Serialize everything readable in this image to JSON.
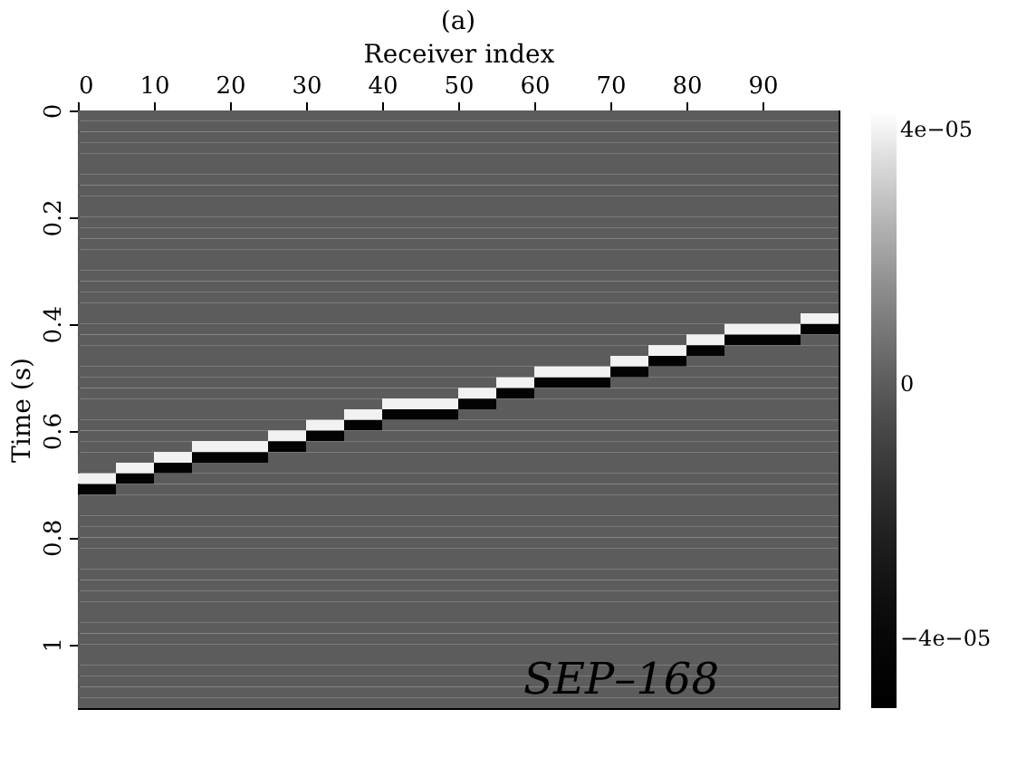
{
  "chart_data": {
    "type": "heatmap",
    "title": "(a)",
    "xlabel": "Receiver index",
    "ylabel": "Time (s)",
    "x": [
      2.5,
      7.5,
      12.5,
      17.5,
      22.5,
      27.5,
      32.5,
      37.5,
      42.5,
      47.5,
      52.5,
      57.5,
      62.5,
      67.5,
      72.5,
      77.5,
      82.5,
      87.5,
      92.5,
      97.5
    ],
    "y": [
      0.01,
      0.03,
      0.05,
      0.07,
      0.09,
      0.11,
      0.13,
      0.15,
      0.17,
      0.19,
      0.21,
      0.23,
      0.25,
      0.27,
      0.29,
      0.31,
      0.33,
      0.35,
      0.37,
      0.39,
      0.41,
      0.43,
      0.45,
      0.47,
      0.49,
      0.51,
      0.53,
      0.55,
      0.57,
      0.59,
      0.61,
      0.63,
      0.65,
      0.67,
      0.69,
      0.71,
      0.73,
      0.75,
      0.77,
      0.79,
      0.81,
      0.83,
      0.85,
      0.87,
      0.89,
      0.91,
      0.93,
      0.95,
      0.97,
      0.99,
      1.01,
      1.03,
      1.05,
      1.07,
      1.09,
      1.11
    ],
    "xlim": [
      0,
      100
    ],
    "xticks": [
      0,
      10,
      20,
      30,
      40,
      50,
      60,
      70,
      80,
      90
    ],
    "ylim": [
      1.12,
      0
    ],
    "yticks": [
      0,
      0.2,
      0.4,
      0.6,
      0.8,
      1
    ],
    "clim": [
      -5.1e-05,
      4.3e-05
    ],
    "cticks": [
      {
        "value": 4e-05,
        "label": "4e−05"
      },
      0,
      {
        "value": -4e-05,
        "label": "−4e−05"
      }
    ],
    "colors": [
      "#000000",
      "#ffffff"
    ],
    "grid": false,
    "annotations": [
      "SEP–168"
    ],
    "cells": [
      [
        0,
        0,
        0,
        0,
        0,
        0,
        0,
        0,
        0,
        0,
        0,
        0,
        0,
        0,
        0,
        0,
        0,
        0,
        0,
        0
      ],
      [
        0,
        0,
        0,
        0,
        0,
        0,
        0,
        0,
        0,
        0,
        0,
        0,
        0,
        0,
        0,
        0,
        0,
        0,
        0,
        0
      ],
      [
        0,
        0,
        0,
        0,
        0,
        0,
        0,
        0,
        0,
        0,
        0,
        0,
        0,
        0,
        0,
        0,
        0,
        0,
        0,
        0
      ],
      [
        0,
        0,
        0,
        0,
        0,
        0,
        0,
        0,
        0,
        0,
        0,
        0,
        0,
        0,
        0,
        0,
        0,
        0,
        0,
        0
      ],
      [
        0,
        0,
        0,
        0,
        0,
        0,
        0,
        0,
        0,
        0,
        0,
        0,
        0,
        0,
        0,
        0,
        0,
        0,
        0,
        0
      ],
      [
        0,
        0,
        0,
        0,
        0,
        0,
        0,
        0,
        0,
        0,
        0,
        0,
        0,
        0,
        0,
        0,
        0,
        0,
        0,
        0
      ],
      [
        0,
        0,
        0,
        0,
        0,
        0,
        0,
        0,
        0,
        0,
        0,
        0,
        0,
        0,
        0,
        0,
        0,
        0,
        0,
        0
      ],
      [
        0,
        0,
        0,
        0,
        0,
        0,
        0,
        0,
        0,
        0,
        0,
        0,
        0,
        0,
        0,
        0,
        0,
        0,
        0,
        0
      ],
      [
        0,
        0,
        0,
        0,
        0,
        0,
        0,
        0,
        0,
        0,
        0,
        0,
        0,
        0,
        0,
        0,
        0,
        0,
        0,
        0
      ],
      [
        0,
        0,
        0,
        0,
        0,
        0,
        0,
        0,
        0,
        0,
        0,
        0,
        0,
        0,
        0,
        0,
        0,
        0,
        0,
        0
      ],
      [
        0,
        0,
        0,
        0,
        0,
        0,
        0,
        0,
        0,
        0,
        0,
        0,
        0,
        0,
        0,
        0,
        0,
        0,
        0,
        0
      ],
      [
        0,
        0,
        0,
        0,
        0,
        0,
        0,
        0,
        0,
        0,
        0,
        0,
        0,
        0,
        0,
        0,
        0,
        0,
        0,
        0
      ],
      [
        0,
        0,
        0,
        0,
        0,
        0,
        0,
        0,
        0,
        0,
        0,
        0,
        0,
        0,
        0,
        0,
        0,
        0,
        0,
        0
      ],
      [
        0,
        0,
        0,
        0,
        0,
        0,
        0,
        0,
        0,
        0,
        0,
        0,
        0,
        0,
        0,
        0,
        0,
        0,
        0,
        0
      ],
      [
        0,
        0,
        0,
        0,
        0,
        0,
        0,
        0,
        0,
        0,
        0,
        0,
        0,
        0,
        0,
        0,
        0,
        0,
        0,
        0
      ],
      [
        0,
        0,
        0,
        0,
        0,
        0,
        0,
        0,
        0,
        0,
        0,
        0,
        0,
        0,
        0,
        0,
        0,
        0,
        0,
        0
      ],
      [
        0,
        0,
        0,
        0,
        0,
        0,
        0,
        0,
        0,
        0,
        0,
        0,
        0,
        0,
        0,
        0,
        0,
        0,
        0,
        0
      ],
      [
        0,
        0,
        0,
        0,
        0,
        0,
        0,
        0,
        0,
        0,
        0,
        0,
        0,
        0,
        0,
        0,
        0,
        0,
        0,
        0
      ],
      [
        0,
        0,
        0,
        0,
        0,
        0,
        0,
        0,
        0,
        0,
        0,
        0,
        0,
        0,
        0,
        0,
        0,
        0,
        0,
        0
      ],
      [
        0,
        0,
        0,
        0,
        0,
        0,
        0,
        0,
        0,
        0,
        0,
        0,
        0,
        0,
        0,
        0,
        0,
        0,
        0,
        4e-05
      ],
      [
        0,
        0,
        0,
        0,
        0,
        0,
        0,
        0,
        0,
        0,
        0,
        0,
        0,
        0,
        0,
        0,
        0,
        4e-05,
        4e-05,
        -4.5e-05
      ],
      [
        0,
        0,
        0,
        0,
        0,
        0,
        0,
        0,
        0,
        0,
        0,
        0,
        0,
        0,
        0,
        0,
        4e-05,
        -4.5e-05,
        -4.5e-05,
        0
      ],
      [
        0,
        0,
        0,
        0,
        0,
        0,
        0,
        0,
        0,
        0,
        0,
        0,
        0,
        0,
        0,
        4e-05,
        -4.5e-05,
        0,
        0,
        0
      ],
      [
        0,
        0,
        0,
        0,
        0,
        0,
        0,
        0,
        0,
        0,
        0,
        0,
        0,
        0,
        4e-05,
        -4.5e-05,
        0,
        0,
        0,
        0
      ],
      [
        0,
        0,
        0,
        0,
        0,
        0,
        0,
        0,
        0,
        0,
        0,
        0,
        4e-05,
        4e-05,
        -4.5e-05,
        0,
        0,
        0,
        0,
        0
      ],
      [
        0,
        0,
        0,
        0,
        0,
        0,
        0,
        0,
        0,
        0,
        0,
        4e-05,
        -4.5e-05,
        -4.5e-05,
        0,
        0,
        0,
        0,
        0,
        0
      ],
      [
        0,
        0,
        0,
        0,
        0,
        0,
        0,
        0,
        0,
        0,
        4e-05,
        -4.5e-05,
        0,
        0,
        0,
        0,
        0,
        0,
        0,
        0
      ],
      [
        0,
        0,
        0,
        0,
        0,
        0,
        0,
        0,
        4e-05,
        4e-05,
        -4.5e-05,
        0,
        0,
        0,
        0,
        0,
        0,
        0,
        0,
        0
      ],
      [
        0,
        0,
        0,
        0,
        0,
        0,
        0,
        4e-05,
        -4.5e-05,
        -4.5e-05,
        0,
        0,
        0,
        0,
        0,
        0,
        0,
        0,
        0,
        0
      ],
      [
        0,
        0,
        0,
        0,
        0,
        0,
        4e-05,
        -4.5e-05,
        0,
        0,
        0,
        0,
        0,
        0,
        0,
        0,
        0,
        0,
        0,
        0
      ],
      [
        0,
        0,
        0,
        0,
        0,
        4e-05,
        -4.5e-05,
        0,
        0,
        0,
        0,
        0,
        0,
        0,
        0,
        0,
        0,
        0,
        0,
        0
      ],
      [
        0,
        0,
        0,
        4e-05,
        4e-05,
        -4.5e-05,
        0,
        0,
        0,
        0,
        0,
        0,
        0,
        0,
        0,
        0,
        0,
        0,
        0,
        0
      ],
      [
        0,
        0,
        4e-05,
        -4.5e-05,
        -4.5e-05,
        0,
        0,
        0,
        0,
        0,
        0,
        0,
        0,
        0,
        0,
        0,
        0,
        0,
        0,
        0
      ],
      [
        0,
        4e-05,
        -4.5e-05,
        0,
        0,
        0,
        0,
        0,
        0,
        0,
        0,
        0,
        0,
        0,
        0,
        0,
        0,
        0,
        0,
        0
      ],
      [
        4e-05,
        -4.5e-05,
        0,
        0,
        0,
        0,
        0,
        0,
        0,
        0,
        0,
        0,
        0,
        0,
        0,
        0,
        0,
        0,
        0,
        0
      ],
      [
        -4.5e-05,
        0,
        0,
        0,
        0,
        0,
        0,
        0,
        0,
        0,
        0,
        0,
        0,
        0,
        0,
        0,
        0,
        0,
        0,
        0
      ],
      [
        0,
        0,
        0,
        0,
        0,
        0,
        0,
        0,
        0,
        0,
        0,
        0,
        0,
        0,
        0,
        0,
        0,
        0,
        0,
        0
      ],
      [
        0,
        0,
        0,
        0,
        0,
        0,
        0,
        0,
        0,
        0,
        0,
        0,
        0,
        0,
        0,
        0,
        0,
        0,
        0,
        0
      ],
      [
        0,
        0,
        0,
        0,
        0,
        0,
        0,
        0,
        0,
        0,
        0,
        0,
        0,
        0,
        0,
        0,
        0,
        0,
        0,
        0
      ],
      [
        0,
        0,
        0,
        0,
        0,
        0,
        0,
        0,
        0,
        0,
        0,
        0,
        0,
        0,
        0,
        0,
        0,
        0,
        0,
        0
      ],
      [
        0,
        0,
        0,
        0,
        0,
        0,
        0,
        0,
        0,
        0,
        0,
        0,
        0,
        0,
        0,
        0,
        0,
        0,
        0,
        0
      ],
      [
        0,
        0,
        0,
        0,
        0,
        0,
        0,
        0,
        0,
        0,
        0,
        0,
        0,
        0,
        0,
        0,
        0,
        0,
        0,
        0
      ],
      [
        0,
        0,
        0,
        0,
        0,
        0,
        0,
        0,
        0,
        0,
        0,
        0,
        0,
        0,
        0,
        0,
        0,
        0,
        0,
        0
      ],
      [
        0,
        0,
        0,
        0,
        0,
        0,
        0,
        0,
        0,
        0,
        0,
        0,
        0,
        0,
        0,
        0,
        0,
        0,
        0,
        0
      ],
      [
        0,
        0,
        0,
        0,
        0,
        0,
        0,
        0,
        0,
        0,
        0,
        0,
        0,
        0,
        0,
        0,
        0,
        0,
        0,
        0
      ],
      [
        0,
        0,
        0,
        0,
        0,
        0,
        0,
        0,
        0,
        0,
        0,
        0,
        0,
        0,
        0,
        0,
        0,
        0,
        0,
        0
      ],
      [
        0,
        0,
        0,
        0,
        0,
        0,
        0,
        0,
        0,
        0,
        0,
        0,
        0,
        0,
        0,
        0,
        0,
        0,
        0,
        0
      ],
      [
        0,
        0,
        0,
        0,
        0,
        0,
        0,
        0,
        0,
        0,
        0,
        0,
        0,
        0,
        0,
        0,
        0,
        0,
        0,
        0
      ],
      [
        0,
        0,
        0,
        0,
        0,
        0,
        0,
        0,
        0,
        0,
        0,
        0,
        0,
        0,
        0,
        0,
        0,
        0,
        0,
        0
      ],
      [
        0,
        0,
        0,
        0,
        0,
        0,
        0,
        0,
        0,
        0,
        0,
        0,
        0,
        0,
        0,
        0,
        0,
        0,
        0,
        0
      ],
      [
        0,
        0,
        0,
        0,
        0,
        0,
        0,
        0,
        0,
        0,
        0,
        0,
        0,
        0,
        0,
        0,
        0,
        0,
        0,
        0
      ],
      [
        0,
        0,
        0,
        0,
        0,
        0,
        0,
        0,
        0,
        0,
        0,
        0,
        0,
        0,
        0,
        0,
        0,
        0,
        0,
        0
      ],
      [
        0,
        0,
        0,
        0,
        0,
        0,
        0,
        0,
        0,
        0,
        0,
        0,
        0,
        0,
        0,
        0,
        0,
        0,
        0,
        0
      ],
      [
        0,
        0,
        0,
        0,
        0,
        0,
        0,
        0,
        0,
        0,
        0,
        0,
        0,
        0,
        0,
        0,
        0,
        0,
        0,
        0
      ],
      [
        0,
        0,
        0,
        0,
        0,
        0,
        0,
        0,
        0,
        0,
        0,
        0,
        0,
        0,
        0,
        0,
        0,
        0,
        0,
        0
      ],
      [
        0,
        0,
        0,
        0,
        0,
        0,
        0,
        0,
        0,
        0,
        0,
        0,
        0,
        0,
        0,
        0,
        0,
        0,
        0,
        0
      ]
    ]
  }
}
